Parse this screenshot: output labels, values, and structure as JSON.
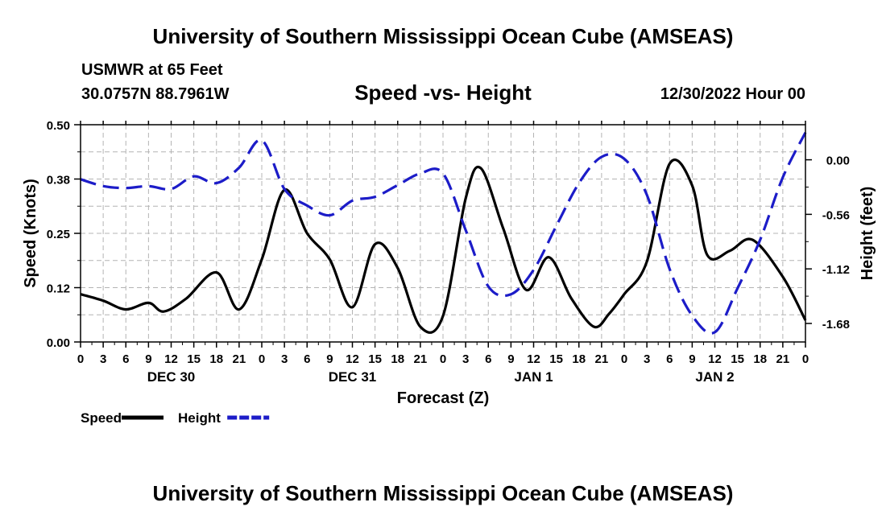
{
  "header": {
    "title": "University of Southern Mississippi Ocean Cube (AMSEAS)",
    "station": "USMWR at 65 Feet",
    "coordinates": "30.0757N  88.7961W",
    "subtitle": "Speed -vs- Height",
    "run_time": "12/30/2022 Hour 00"
  },
  "footer": {
    "title": "University of Southern Mississippi Ocean Cube (AMSEAS)"
  },
  "chart_data": {
    "type": "line",
    "title": "Speed -vs- Height",
    "xlabel": "Forecast (Z)",
    "ylabel": "Speed (Knots)",
    "y2label": "Height (feet)",
    "x_range": [
      0,
      96
    ],
    "ylim": [
      0,
      0.5
    ],
    "y2lim": [
      -1.87,
      0.36
    ],
    "y_ticks": [
      "0.00",
      "0.12",
      "0.25",
      "0.38",
      "0.50"
    ],
    "y_tick_values": [
      0,
      0.125,
      0.25,
      0.375,
      0.5
    ],
    "y2_ticks": [
      "0.00",
      "-0.56",
      "-1.12",
      "-1.68"
    ],
    "y2_tick_values": [
      0,
      -0.56,
      -1.12,
      -1.68
    ],
    "x_tick_labels": [
      "0",
      "3",
      "6",
      "9",
      "12",
      "15",
      "18",
      "21",
      "0",
      "3",
      "6",
      "9",
      "12",
      "15",
      "18",
      "21",
      "0",
      "3",
      "6",
      "9",
      "12",
      "15",
      "18",
      "21",
      "0",
      "3",
      "6",
      "9",
      "12",
      "15",
      "18",
      "21",
      "0"
    ],
    "day_labels": [
      {
        "label": "DEC 30",
        "hour": 12
      },
      {
        "label": "DEC 31",
        "hour": 36
      },
      {
        "label": "JAN 1",
        "hour": 60
      },
      {
        "label": "JAN 2",
        "hour": 84
      }
    ],
    "grid": true,
    "legend_position": "bottom-left",
    "series": [
      {
        "name": "Speed",
        "axis": "left",
        "color": "#000000",
        "dash": "solid",
        "x": [
          0,
          3,
          6,
          9,
          11,
          14,
          18,
          21,
          24,
          27,
          30,
          33,
          36,
          39,
          42,
          45,
          48,
          51,
          53,
          56,
          59,
          62,
          65,
          68,
          70,
          72,
          75,
          78,
          81,
          83,
          86,
          89,
          93,
          96
        ],
        "values": [
          0.11,
          0.095,
          0.075,
          0.09,
          0.07,
          0.1,
          0.16,
          0.075,
          0.19,
          0.35,
          0.25,
          0.19,
          0.08,
          0.225,
          0.17,
          0.035,
          0.06,
          0.33,
          0.4,
          0.26,
          0.12,
          0.195,
          0.1,
          0.035,
          0.065,
          0.11,
          0.185,
          0.41,
          0.36,
          0.2,
          0.21,
          0.235,
          0.15,
          0.05
        ]
      },
      {
        "name": "Height",
        "axis": "right",
        "color": "#1c1cc8",
        "dash": "dashed",
        "x": [
          0,
          3,
          6,
          9,
          12,
          15,
          18,
          21,
          24,
          27,
          30,
          33,
          36,
          39,
          42,
          45,
          48,
          51,
          54,
          57,
          60,
          63,
          66,
          69,
          72,
          75,
          78,
          81,
          84,
          87,
          90,
          93,
          96
        ],
        "values": [
          -0.2,
          -0.27,
          -0.29,
          -0.27,
          -0.3,
          -0.17,
          -0.24,
          -0.08,
          0.2,
          -0.3,
          -0.47,
          -0.57,
          -0.42,
          -0.38,
          -0.26,
          -0.14,
          -0.14,
          -0.72,
          -1.3,
          -1.38,
          -1.13,
          -0.68,
          -0.24,
          0.03,
          0.01,
          -0.36,
          -1.12,
          -1.6,
          -1.77,
          -1.32,
          -0.82,
          -0.18,
          0.28
        ]
      }
    ]
  }
}
